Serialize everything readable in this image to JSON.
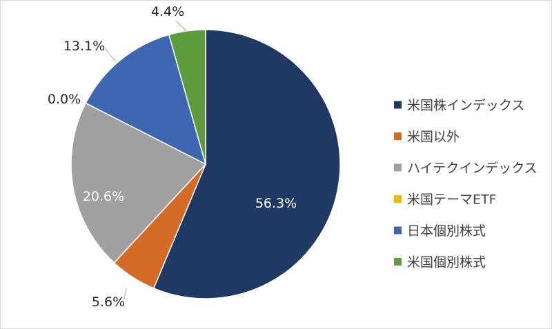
{
  "chart_data": {
    "type": "pie",
    "categories": [
      "米国株インデックス",
      "米国以外",
      "ハイテクインデックス",
      "米国テーマETF",
      "日本個別株式",
      "米国個別株式"
    ],
    "values": [
      56.3,
      5.6,
      20.6,
      0.0,
      13.1,
      4.4
    ],
    "labels": [
      "56.3%",
      "5.6%",
      "20.6%",
      "0.0%",
      "13.1%",
      "4.4%"
    ],
    "colors": [
      "#203864",
      "#d46b27",
      "#a0a0a0",
      "#f2b800",
      "#3e67b1",
      "#5e9b3d"
    ],
    "start": "top",
    "direction": "clockwise",
    "legend_position": "right"
  }
}
